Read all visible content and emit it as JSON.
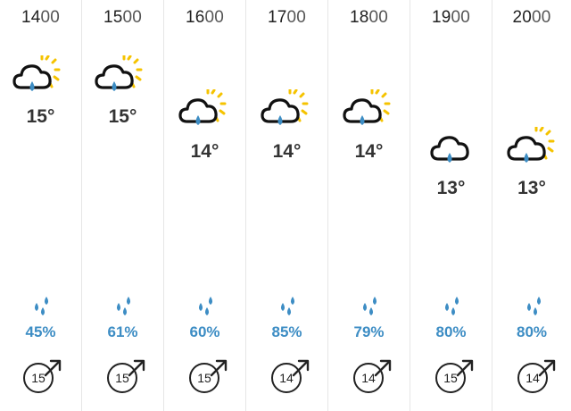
{
  "forecast": {
    "hours": [
      {
        "hh": "14",
        "mm": "00",
        "temp": "15°",
        "precip": "45%",
        "wind": "15",
        "icon": "sunny-intervals-rain-icon"
      },
      {
        "hh": "15",
        "mm": "00",
        "temp": "15°",
        "precip": "61%",
        "wind": "15",
        "icon": "sunny-intervals-rain-icon"
      },
      {
        "hh": "16",
        "mm": "00",
        "temp": "14°",
        "precip": "60%",
        "wind": "15",
        "icon": "sunny-intervals-rain-icon"
      },
      {
        "hh": "17",
        "mm": "00",
        "temp": "14°",
        "precip": "85%",
        "wind": "14",
        "icon": "sunny-intervals-rain-icon"
      },
      {
        "hh": "18",
        "mm": "00",
        "temp": "14°",
        "precip": "79%",
        "wind": "14",
        "icon": "sunny-intervals-rain-icon"
      },
      {
        "hh": "19",
        "mm": "00",
        "temp": "13°",
        "precip": "80%",
        "wind": "15",
        "icon": "cloud-rain-icon"
      },
      {
        "hh": "20",
        "mm": "00",
        "temp": "13°",
        "precip": "80%",
        "wind": "14",
        "icon": "sunny-intervals-rain-icon"
      }
    ]
  },
  "colors": {
    "cloud_outline": "#111111",
    "raindrop": "#3d8dc4",
    "sun_rays": "#f5c300",
    "precip_text": "#3d8dc4"
  },
  "icons": {
    "precip": "raindrops-icon",
    "wind_direction": "arrow-up-right-icon"
  }
}
